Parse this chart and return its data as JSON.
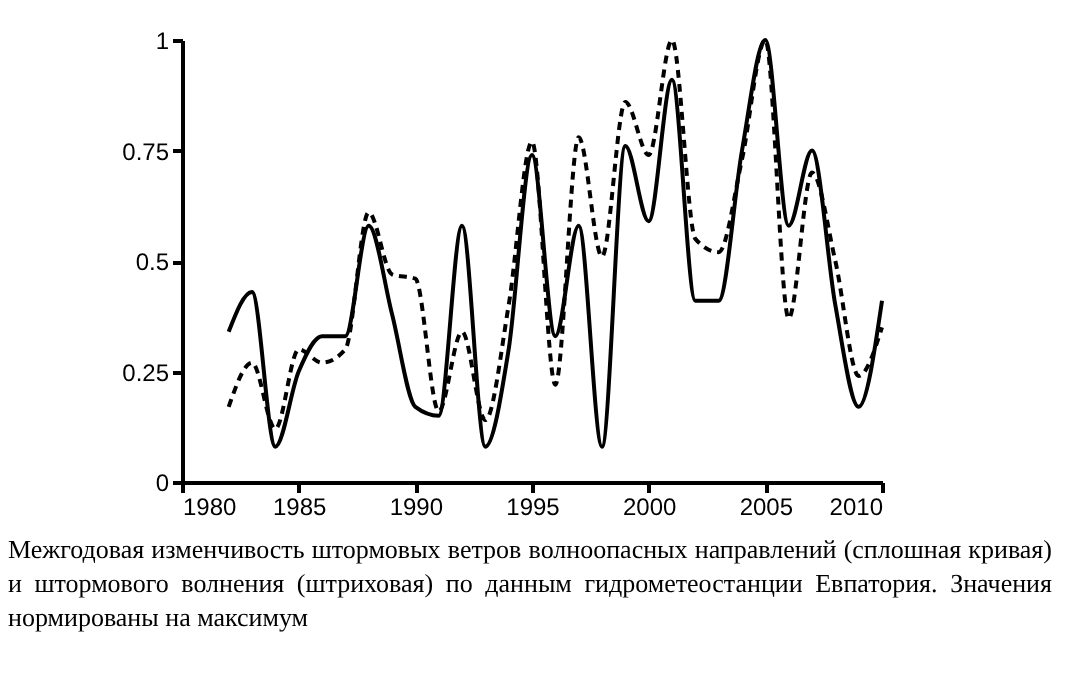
{
  "chart_data": {
    "type": "line",
    "x": [
      1982,
      1983,
      1984,
      1985,
      1986,
      1987,
      1988,
      1989,
      1990,
      1991,
      1992,
      1993,
      1994,
      1995,
      1996,
      1997,
      1998,
      1999,
      2000,
      2001,
      2002,
      2003,
      2004,
      2005,
      2006,
      2007,
      2008,
      2009,
      2010
    ],
    "series": [
      {
        "color": "#000000",
        "line_style": "solid",
        "values": [
          0.34,
          0.43,
          0.08,
          0.25,
          0.33,
          0.33,
          0.58,
          0.38,
          0.17,
          0.15,
          0.58,
          0.08,
          0.3,
          0.74,
          0.33,
          0.58,
          0.08,
          0.76,
          0.59,
          0.91,
          0.41,
          0.41,
          0.75,
          1.0,
          0.58,
          0.75,
          0.4,
          0.17,
          0.41
        ]
      },
      {
        "color": "#000000",
        "line_style": "dashed",
        "values": [
          0.17,
          0.27,
          0.12,
          0.3,
          0.27,
          0.3,
          0.61,
          0.47,
          0.46,
          0.16,
          0.34,
          0.14,
          0.4,
          0.77,
          0.22,
          0.78,
          0.51,
          0.86,
          0.74,
          1.0,
          0.55,
          0.52,
          0.73,
          1.0,
          0.37,
          0.7,
          0.5,
          0.24,
          0.35
        ]
      }
    ],
    "xlim": [
      1980,
      2010
    ],
    "xticks": [
      1980,
      1985,
      1990,
      1995,
      2000,
      2005,
      2010
    ],
    "ylim": [
      0,
      1
    ],
    "yticks": [
      0,
      0.25,
      0.5,
      0.75,
      1
    ],
    "grid": false,
    "marker": "none",
    "annotations": [
      "Межгодовая изменчивость штормовых ветров волноопасных направлений (сплошная кривая) и штормового волнения (штриховая) по данным гидрометеостанции Евпатория. Значения нормированы на максимум"
    ]
  }
}
